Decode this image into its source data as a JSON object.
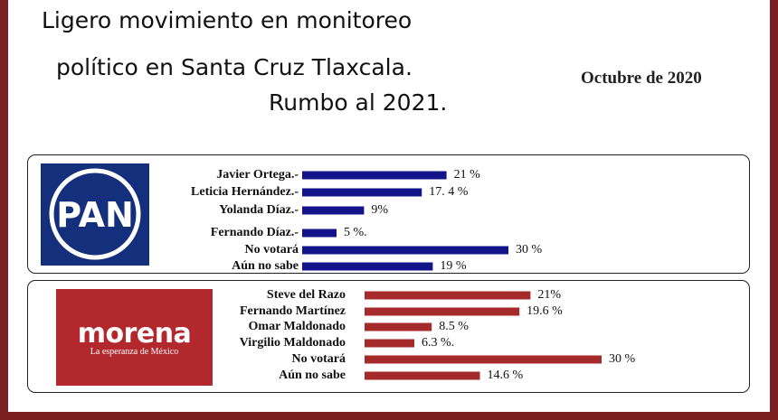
{
  "header": {
    "title_line1": "Ligero movimiento en monitoreo",
    "title_line2": "político en Santa Cruz Tlaxcala.",
    "title_line3": "Rumbo al 2021.",
    "date": "Octubre de 2020"
  },
  "logos": {
    "pan": {
      "text": "PAN",
      "color": "#14307c"
    },
    "morena": {
      "text": "morena",
      "subtitle": "La esperanza de México",
      "color": "#b3282d"
    }
  },
  "chart_data": [
    {
      "type": "bar",
      "orientation": "horizontal",
      "party": "PAN",
      "color": "#14148a",
      "categories": [
        "Javier Ortega.-",
        "Leticia Hernández.-",
        "Yolanda Díaz.-",
        "Fernando Díaz.-",
        "No votará",
        "Aún no sabe"
      ],
      "values": [
        21,
        17.4,
        9,
        5,
        30,
        19
      ],
      "value_labels": [
        "21 %",
        "17. 4 %",
        "9%",
        "5 %.",
        "30 %",
        "19 %"
      ],
      "unit": "%",
      "xlim": [
        0,
        30
      ]
    },
    {
      "type": "bar",
      "orientation": "horizontal",
      "party": "MORENA",
      "color": "#a52a2a",
      "categories": [
        "Steve del Razo",
        "Fernando Martínez",
        "Omar Maldonado",
        "Virgilio Maldonado",
        "No votará",
        "Aún no sabe"
      ],
      "values": [
        21,
        19.6,
        8.5,
        6.3,
        30,
        14.6
      ],
      "value_labels": [
        "21%",
        "19.6 %",
        "8.5 %",
        "6.3 %.",
        "30 %",
        "14.6 %"
      ],
      "unit": "%",
      "xlim": [
        0,
        30
      ]
    }
  ]
}
